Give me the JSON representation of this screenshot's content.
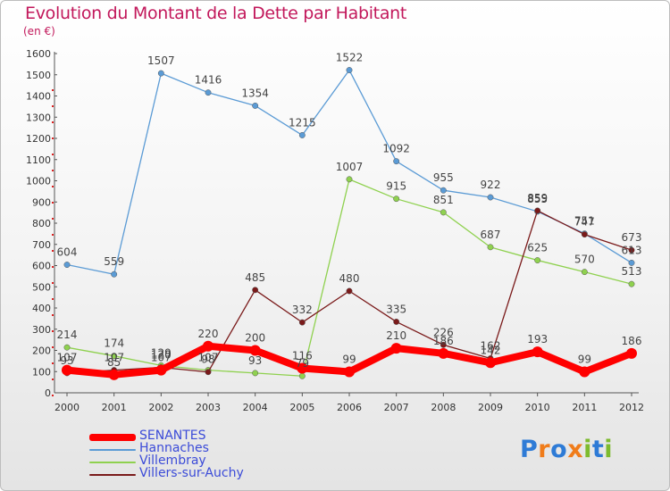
{
  "chart_data": {
    "type": "line",
    "title": "Evolution du Montant de la Dette par Habitant",
    "subtitle": "(en €)",
    "categories": [
      "2000",
      "2001",
      "2002",
      "2003",
      "2004",
      "2005",
      "2006",
      "2007",
      "2008",
      "2009",
      "2010",
      "2011",
      "2012"
    ],
    "ylim": [
      0,
      1600
    ],
    "yticks": [
      0,
      100,
      200,
      300,
      400,
      500,
      600,
      700,
      800,
      900,
      1000,
      1100,
      1200,
      1300,
      1400,
      1500,
      1600
    ],
    "grid": false,
    "legend_position": "bottom-left",
    "series": [
      {
        "name": "SENANTES",
        "color": "#ff0000",
        "values": [
          107,
          85,
          107,
          220,
          200,
          116,
          99,
          210,
          186,
          142,
          193,
          99,
          186
        ]
      },
      {
        "name": "Hannaches",
        "color": "#5b9bd5",
        "values": [
          604,
          559,
          1507,
          1416,
          1354,
          1215,
          1522,
          1092,
          955,
          922,
          855,
          751,
          613
        ]
      },
      {
        "name": "Villembray",
        "color": "#8fd14f",
        "values": [
          214,
          174,
          129,
          107,
          93,
          79,
          1007,
          915,
          851,
          687,
          625,
          570,
          513
        ]
      },
      {
        "name": "Villers-sur-Auchy",
        "color": "#7a1a1a",
        "values": [
          93,
          107,
          120,
          98,
          485,
          332,
          480,
          335,
          226,
          162,
          859,
          747,
          673
        ]
      }
    ]
  },
  "logo": {
    "text": "Proxiti",
    "letters": [
      "P",
      "r",
      "o",
      "x",
      "i",
      "t",
      "i"
    ],
    "colors": [
      "#2e7bd6",
      "#f07c1a",
      "#2e7bd6",
      "#f07c1a",
      "#7dbb2e",
      "#2e7bd6",
      "#7dbb2e"
    ]
  }
}
